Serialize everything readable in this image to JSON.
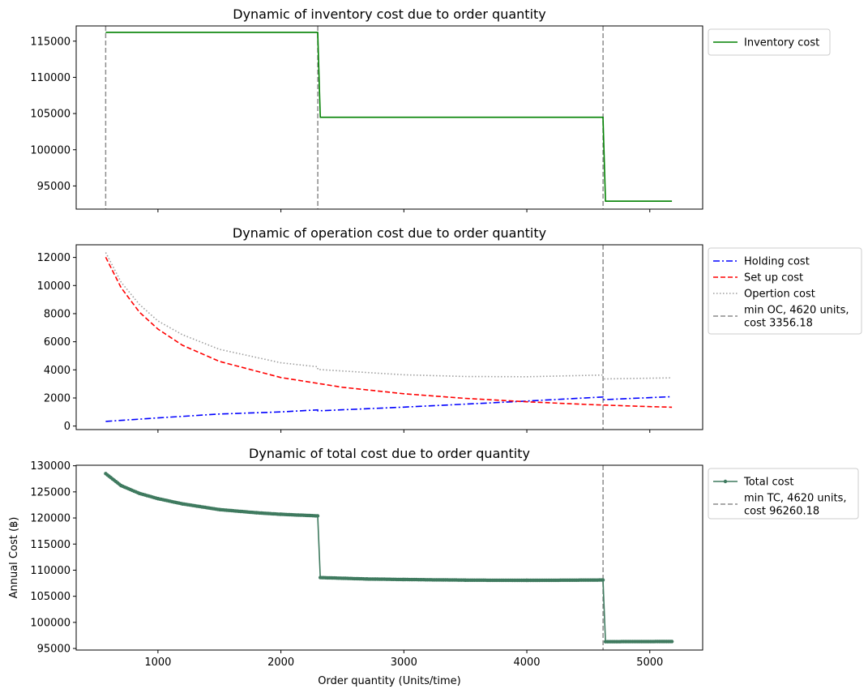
{
  "chart_data": [
    {
      "type": "line",
      "title": "Dynamic of inventory cost due to order quantity",
      "xlabel": "",
      "ylabel": "",
      "xlim": [
        335,
        5430
      ],
      "ylim": [
        91800,
        117100
      ],
      "xticks": [
        1000,
        2000,
        3000,
        4000,
        5000
      ],
      "show_xtick_labels": false,
      "yticks": [
        95000,
        100000,
        105000,
        110000,
        115000
      ],
      "grid": false,
      "legend_position": "upper-right-outside",
      "vlines": [
        575,
        2300,
        4620
      ],
      "series": [
        {
          "name": "Inventory cost",
          "color": "#008000",
          "style": "solid",
          "x": [
            575,
            2299,
            2320,
            4619,
            4640,
            5180
          ],
          "y": [
            116220,
            116220,
            104480,
            104480,
            92900,
            92900
          ]
        }
      ]
    },
    {
      "type": "line",
      "title": "Dynamic of operation cost due to order quantity",
      "xlabel": "",
      "ylabel": "",
      "xlim": [
        335,
        5430
      ],
      "ylim": [
        -250,
        12900
      ],
      "xticks": [
        1000,
        2000,
        3000,
        4000,
        5000
      ],
      "show_xtick_labels": false,
      "yticks": [
        0,
        2000,
        4000,
        6000,
        8000,
        10000,
        12000
      ],
      "grid": false,
      "legend_position": "upper-right-outside",
      "vlines": [
        4620
      ],
      "series": [
        {
          "name": "Holding cost",
          "color": "#0000ff",
          "style": "dashdot",
          "x": [
            575,
            1000,
            1500,
            2000,
            2299,
            2300,
            3000,
            3500,
            4000,
            4619,
            4620,
            5180
          ],
          "y": [
            330,
            580,
            860,
            1010,
            1150,
            1080,
            1350,
            1560,
            1780,
            2070,
            1880,
            2090
          ]
        },
        {
          "name": "Set up cost",
          "color": "#ff0000",
          "style": "dashed",
          "x": [
            575,
            700,
            850,
            1000,
            1200,
            1500,
            2000,
            2500,
            3000,
            3500,
            4000,
            4500,
            5000,
            5180
          ],
          "y": [
            12020,
            9850,
            8100,
            6900,
            5750,
            4600,
            3450,
            2760,
            2300,
            1970,
            1730,
            1530,
            1380,
            1340
          ]
        },
        {
          "name": "Opertion cost",
          "color": "#9e9e9e",
          "style": "dotted",
          "x": [
            575,
            700,
            850,
            1000,
            1200,
            1500,
            2000,
            2299,
            2300,
            3000,
            3500,
            4000,
            4619,
            4620,
            5180
          ],
          "y": [
            12350,
            10240,
            8650,
            7480,
            6500,
            5460,
            4500,
            4220,
            4030,
            3650,
            3530,
            3510,
            3630,
            3356,
            3430
          ]
        },
        {
          "name": "min OC, 4620 units,\ncost 3356.18",
          "color": "#8c8c8c",
          "style": "dashed",
          "legend_only": true
        }
      ]
    },
    {
      "type": "line",
      "title": "Dynamic of total cost due to order quantity",
      "xlabel": "Order quantity (Units/time)",
      "ylabel": "Annual Cost (฿)",
      "xlim": [
        335,
        5430
      ],
      "ylim": [
        94700,
        130100
      ],
      "xticks": [
        1000,
        2000,
        3000,
        4000,
        5000
      ],
      "show_xtick_labels": true,
      "yticks": [
        95000,
        100000,
        105000,
        110000,
        115000,
        120000,
        125000,
        130000
      ],
      "grid": false,
      "legend_position": "upper-right-outside",
      "vlines": [
        4620
      ],
      "series": [
        {
          "name": "Total cost",
          "color": "#3f7a5f",
          "style": "solid",
          "marker": "dot",
          "x": [
            575,
            700,
            850,
            1000,
            1200,
            1500,
            1800,
            2000,
            2299,
            2320,
            2700,
            3000,
            3500,
            4000,
            4619,
            4640,
            5180
          ],
          "y": [
            128500,
            126200,
            124700,
            123700,
            122700,
            121600,
            121000,
            120700,
            120400,
            108580,
            108310,
            108210,
            108090,
            108050,
            108110,
            96300,
            96330
          ]
        },
        {
          "name": "min TC, 4620 units,\ncost 96260.18",
          "color": "#8c8c8c",
          "style": "dashed",
          "legend_only": true
        }
      ]
    }
  ]
}
